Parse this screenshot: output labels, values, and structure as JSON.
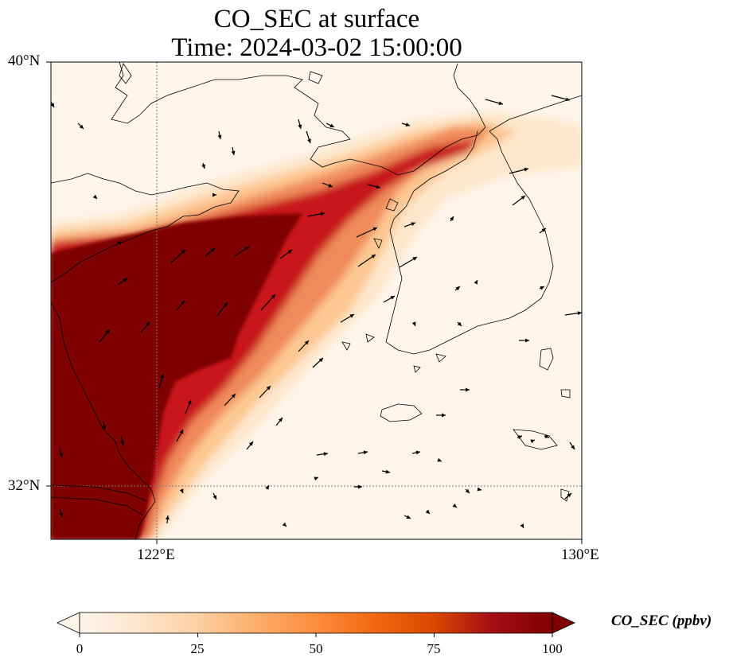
{
  "title_line1": "CO_SEC at surface",
  "title_line2": "Time: 2024-03-02 15:00:00",
  "lat_ticks": [
    "40°N",
    "32°N"
  ],
  "lon_ticks": [
    "122°E",
    "130°E"
  ],
  "colorbar": {
    "label": "CO_SEC (ppbv)",
    "ticks": [
      "0",
      "25",
      "50",
      "75",
      "100"
    ],
    "range": [
      0,
      100
    ],
    "colormap": [
      "#fff5eb",
      "#fee6ce",
      "#fdd0a2",
      "#fdae6b",
      "#fd8d3c",
      "#f16913",
      "#d94801",
      "#a50f15",
      "#7f0000"
    ]
  },
  "map": {
    "extent": {
      "lon": [
        120,
        130
      ],
      "lat": [
        31,
        40
      ]
    },
    "gridlines": {
      "lon": [
        122
      ],
      "lat": [
        32
      ]
    },
    "coastline_color": "#000000",
    "plume_description_colors": {
      "high": "#7f0000",
      "mid": "#e34a33",
      "low": "#fdd49e",
      "background": "#fff5eb"
    }
  }
}
